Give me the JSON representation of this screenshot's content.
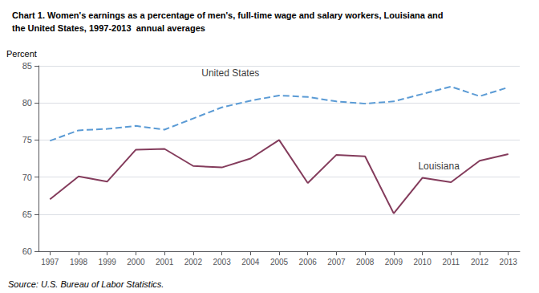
{
  "chart_data": {
    "type": "line",
    "title": "Chart 1. Women's earnings as a percentage of men's, full-time wage and salary workers, Louisiana and\nthe United States, 1997-2013  annual averages",
    "y_label": "Percent",
    "x": [
      1997,
      1998,
      1999,
      2000,
      2001,
      2002,
      2003,
      2004,
      2005,
      2006,
      2007,
      2008,
      2009,
      2010,
      2011,
      2012,
      2013
    ],
    "series": [
      {
        "color": "#5b9bd5",
        "line_style": "dashed",
        "values": [
          74.9,
          76.3,
          76.5,
          76.9,
          76.4,
          77.9,
          79.4,
          80.3,
          81.0,
          80.8,
          80.2,
          79.9,
          80.2,
          81.2,
          82.2,
          80.9,
          82.1
        ]
      },
      {
        "color": "#843c5c",
        "line_style": "solid",
        "values": [
          67.0,
          70.1,
          69.4,
          73.7,
          73.8,
          71.5,
          71.3,
          72.5,
          75.0,
          69.2,
          73.0,
          72.8,
          65.1,
          69.9,
          69.3,
          72.2,
          73.1
        ]
      }
    ],
    "annotations": [
      {
        "text": "United States",
        "x": 2003.3,
        "y": 83.2
      },
      {
        "text": "Louisiana",
        "x": 2009.8,
        "y": 71.5
      },
      {
        "text": "Source: U.S. Bureau of Labor Statistics."
      }
    ],
    "xlim": [
      1996.6,
      2013.4
    ],
    "xticks": [
      1997,
      1998,
      1999,
      2000,
      2001,
      2002,
      2003,
      2004,
      2005,
      2006,
      2007,
      2008,
      2009,
      2010,
      2011,
      2012,
      2013
    ],
    "ylim": [
      60,
      85
    ],
    "yticks": [
      60,
      65,
      70,
      75,
      80,
      85
    ],
    "grid": true
  }
}
